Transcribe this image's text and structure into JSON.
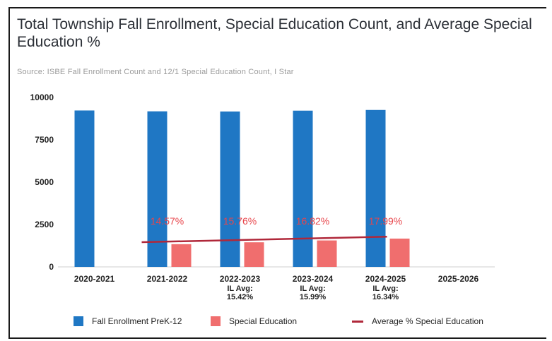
{
  "chart_data": {
    "type": "bar",
    "title": "Total Township Fall Enrollment, Special Education Count, and Average Special Education %",
    "subtitle": "Source: ISBE Fall Enrollment Count and 12/1 Special Education Count, I Star",
    "categories": [
      "2020-2021",
      "2021-2022",
      "2022-2023",
      "2023-2024",
      "2024-2025",
      "2025-2026"
    ],
    "category_notes": [
      "",
      "",
      "IL Avg:\n15.42%",
      "IL Avg:\n15.99%",
      "IL Avg:\n16.34%",
      ""
    ],
    "ylim": [
      0,
      10000
    ],
    "yticks": [
      0,
      2500,
      5000,
      7500,
      10000
    ],
    "series": [
      {
        "name": "Fall Enrollment PreK-12",
        "kind": "bar",
        "color": "#1f77c4",
        "values": [
          9230,
          9180,
          9170,
          9220,
          9260,
          null
        ]
      },
      {
        "name": "Special Education",
        "kind": "bar",
        "color": "#f06e6e",
        "values": [
          null,
          1340,
          1450,
          1560,
          1670,
          null
        ]
      },
      {
        "name": "Average % Special Education",
        "kind": "line",
        "color": "#b0283a",
        "values": [
          null,
          14.57,
          15.76,
          16.82,
          17.99,
          null
        ],
        "labels": [
          "",
          "14.57%",
          "15.76%",
          "16.82%",
          "17.99%",
          ""
        ]
      }
    ],
    "legend": "bottom",
    "grid": false
  },
  "legend_items": [
    "Fall Enrollment PreK-12",
    "Special Education",
    "Average % Special Education"
  ]
}
